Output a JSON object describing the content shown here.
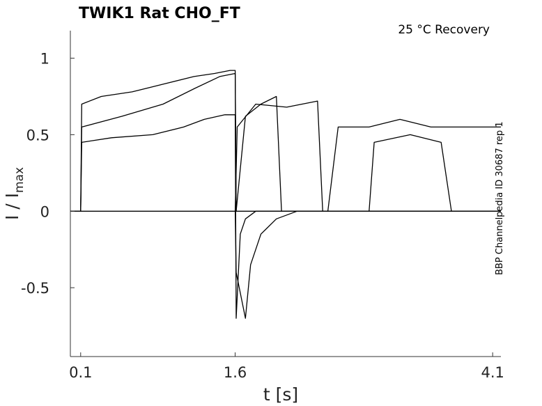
{
  "chart_data": {
    "type": "line",
    "title": "TWIK1  Rat  CHO_FT",
    "condition": "25 °C  Recovery",
    "side_label": "BBP Channelpedia ID 30687 rep 1",
    "xlabel": "t [s]",
    "ylabel_main": "I / I",
    "ylabel_sub": "max",
    "xlim": [
      0.0,
      4.18
    ],
    "ylim": [
      -0.95,
      1.18
    ],
    "xticks": [
      {
        "value": 0.1,
        "label": "0.1"
      },
      {
        "value": 1.6,
        "label": "1.6"
      },
      {
        "value": 4.1,
        "label": "4.1"
      }
    ],
    "yticks": [
      {
        "value": 1,
        "label": "1"
      },
      {
        "value": 0.5,
        "label": "0.5"
      },
      {
        "value": 0,
        "label": "0"
      },
      {
        "value": -0.5,
        "label": "-0.5"
      }
    ],
    "grid": false,
    "color": "#000000",
    "series": [
      {
        "points": [
          [
            0.0,
            0.0
          ],
          [
            0.1,
            0.0
          ],
          [
            0.11,
            0.7
          ],
          [
            0.3,
            0.75
          ],
          [
            0.6,
            0.78
          ],
          [
            0.9,
            0.83
          ],
          [
            1.2,
            0.88
          ],
          [
            1.4,
            0.9
          ],
          [
            1.55,
            0.92
          ],
          [
            1.6,
            0.92
          ],
          [
            1.61,
            0.0
          ],
          [
            4.18,
            0.0
          ]
        ]
      },
      {
        "points": [
          [
            0.0,
            0.0
          ],
          [
            0.1,
            0.0
          ],
          [
            0.11,
            0.45
          ],
          [
            0.4,
            0.48
          ],
          [
            0.8,
            0.5
          ],
          [
            1.1,
            0.55
          ],
          [
            1.3,
            0.6
          ],
          [
            1.5,
            0.63
          ],
          [
            1.6,
            0.63
          ],
          [
            1.61,
            -0.7
          ],
          [
            1.65,
            -0.15
          ],
          [
            1.7,
            -0.05
          ],
          [
            1.8,
            0.0
          ],
          [
            4.18,
            0.0
          ]
        ]
      },
      {
        "points": [
          [
            0.0,
            0.0
          ],
          [
            0.1,
            0.0
          ],
          [
            0.11,
            0.55
          ],
          [
            0.5,
            0.62
          ],
          [
            0.9,
            0.7
          ],
          [
            1.2,
            0.8
          ],
          [
            1.45,
            0.88
          ],
          [
            1.6,
            0.9
          ],
          [
            1.61,
            0.0
          ],
          [
            1.7,
            0.62
          ],
          [
            1.85,
            0.7
          ],
          [
            2.0,
            0.75
          ],
          [
            2.05,
            0.0
          ],
          [
            2.5,
            0.0
          ],
          [
            2.6,
            0.55
          ],
          [
            2.9,
            0.55
          ],
          [
            3.2,
            0.6
          ],
          [
            3.5,
            0.55
          ],
          [
            3.8,
            0.55
          ],
          [
            4.1,
            0.55
          ],
          [
            4.18,
            0.55
          ]
        ]
      },
      {
        "points": [
          [
            0.0,
            0.0
          ],
          [
            0.1,
            0.0
          ],
          [
            0.11,
            0.0
          ],
          [
            1.6,
            0.0
          ],
          [
            1.61,
            -0.4
          ],
          [
            1.7,
            -0.7
          ],
          [
            1.75,
            -0.35
          ],
          [
            1.85,
            -0.15
          ],
          [
            2.0,
            -0.05
          ],
          [
            2.2,
            0.0
          ],
          [
            4.18,
            0.0
          ]
        ]
      },
      {
        "points": [
          [
            1.6,
            0.0
          ],
          [
            1.62,
            0.55
          ],
          [
            1.8,
            0.7
          ],
          [
            2.1,
            0.68
          ],
          [
            2.4,
            0.72
          ],
          [
            2.45,
            0.0
          ],
          [
            2.9,
            0.0
          ],
          [
            2.95,
            0.45
          ],
          [
            3.3,
            0.5
          ],
          [
            3.6,
            0.45
          ],
          [
            3.7,
            0.0
          ],
          [
            4.18,
            0.0
          ]
        ]
      }
    ]
  }
}
